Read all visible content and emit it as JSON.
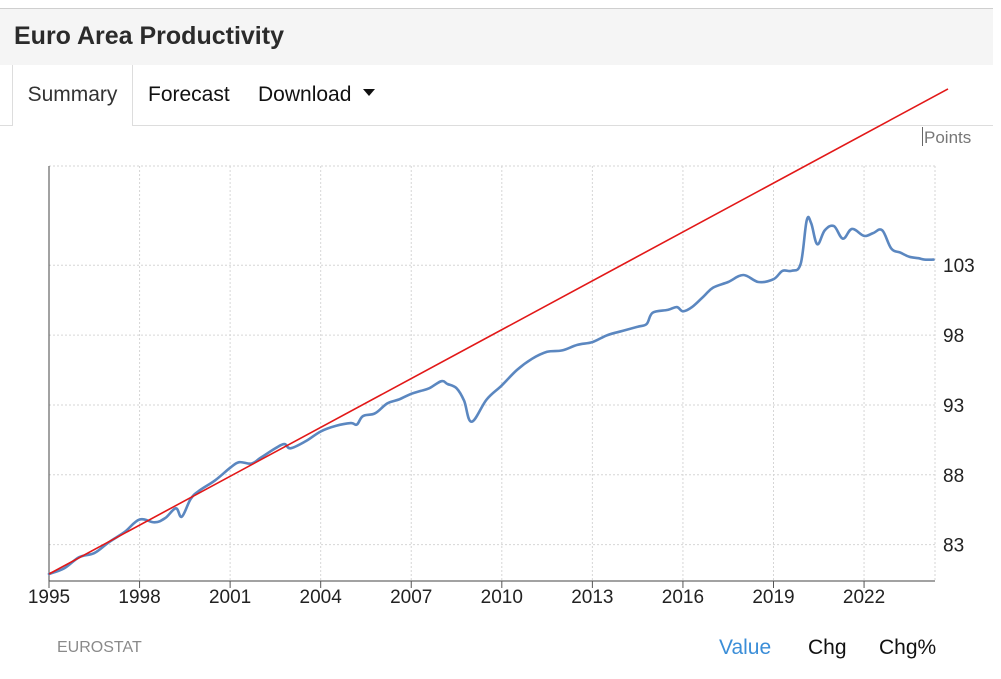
{
  "header": {
    "title": "Euro Area Productivity"
  },
  "tabs": {
    "summary": "Summary",
    "forecast": "Forecast",
    "download": "Download"
  },
  "units_label": "Points",
  "source": "EUROSTAT",
  "view_buttons": {
    "value": "Value",
    "chg": "Chg",
    "chg_pct": "Chg%"
  },
  "colors": {
    "series": "#5b87c0",
    "trend": "#e21818",
    "active_button": "#3b8ed8",
    "grid": "#d6d6d6"
  },
  "chart_data": {
    "type": "line",
    "title": "Euro Area Productivity",
    "ylabel": "Points",
    "xlabel": "",
    "xlim": [
      1995,
      2024.35
    ],
    "ylim": [
      80.4,
      110.1
    ],
    "x_ticks": [
      "1995",
      "1998",
      "2001",
      "2004",
      "2007",
      "2010",
      "2013",
      "2016",
      "2019",
      "2022"
    ],
    "y_ticks": [
      "83",
      "88",
      "93",
      "98",
      "103"
    ],
    "series": [
      {
        "name": "Productivity",
        "x": [
          1995,
          1995.5,
          1996,
          1996.5,
          1997,
          1997.5,
          1998,
          1998.5,
          1998.85,
          1999.2,
          1999.4,
          1999.7,
          2000,
          2000.5,
          2001,
          2001.3,
          2001.7,
          2002,
          2002.5,
          2002.8,
          2003,
          2003.5,
          2004,
          2004.5,
          2005,
          2005.2,
          2005.4,
          2005.8,
          2006.2,
          2006.6,
          2007,
          2007.3,
          2007.6,
          2008,
          2008.2,
          2008.5,
          2008.75,
          2009,
          2009.5,
          2010,
          2010.5,
          2011,
          2011.5,
          2012,
          2012.5,
          2013,
          2013.5,
          2014,
          2014.5,
          2014.8,
          2015,
          2015.5,
          2015.8,
          2016,
          2016.3,
          2016.7,
          2017,
          2017.5,
          2018,
          2018.5,
          2019,
          2019.3,
          2019.6,
          2019.9,
          2020.1,
          2020.25,
          2020.45,
          2020.7,
          2021.0,
          2021.3,
          2021.6,
          2022.0,
          2022.3,
          2022.6,
          2022.9,
          2023.2,
          2023.5,
          2023.8,
          2024.0,
          2024.3
        ],
        "values": [
          80.9,
          81.3,
          82.1,
          82.4,
          83.2,
          83.9,
          84.8,
          84.6,
          84.9,
          85.6,
          85.0,
          86.3,
          86.9,
          87.6,
          88.5,
          88.9,
          88.8,
          89.2,
          89.9,
          90.2,
          89.9,
          90.4,
          91.1,
          91.5,
          91.7,
          91.6,
          92.2,
          92.4,
          93.1,
          93.4,
          93.8,
          94.0,
          94.2,
          94.7,
          94.5,
          94.2,
          93.3,
          91.8,
          93.4,
          94.4,
          95.5,
          96.3,
          96.8,
          96.9,
          97.3,
          97.5,
          98.0,
          98.3,
          98.6,
          98.8,
          99.6,
          99.8,
          100.0,
          99.7,
          100.0,
          100.8,
          101.4,
          101.8,
          102.3,
          101.8,
          102.0,
          102.6,
          102.6,
          103.1,
          106.2,
          106.0,
          104.5,
          105.5,
          105.8,
          104.9,
          105.6,
          105.1,
          105.3,
          105.5,
          104.2,
          103.9,
          103.6,
          103.5,
          103.4,
          103.4
        ]
      },
      {
        "name": "Trend line",
        "x": [
          1995,
          2024.35
        ],
        "values": [
          80.9,
          115.4
        ]
      }
    ]
  }
}
